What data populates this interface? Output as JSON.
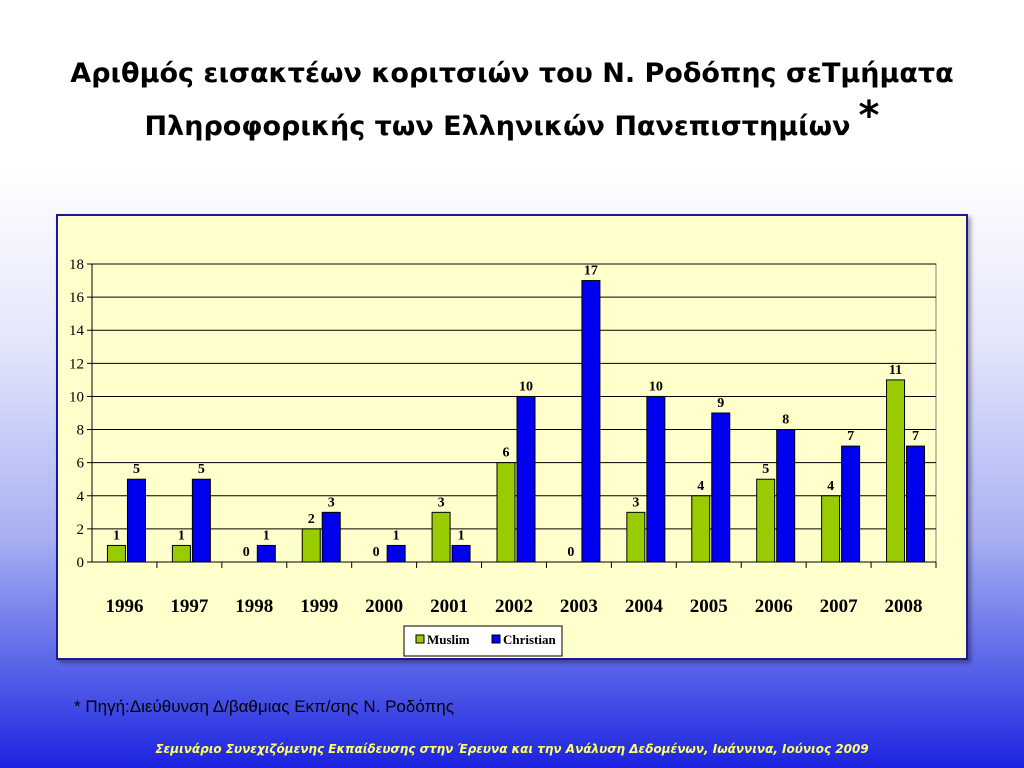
{
  "slide": {
    "title_line1": "Αριθμός εισακτέων κοριτσιών του Ν. Ροδόπης σεΤμήματα",
    "title_line2": "Πληροφορικής των Ελληνικών Πανεπιστημίων",
    "title_mark": "*",
    "source_note": "* Πηγή:Διεύθυνση Δ/βαθμιας Εκπ/σης Ν. Ροδόπης",
    "footer": "Σεμινάριο Συνεχιζόμενης Εκπαίδευσης στην Έρευνα και την Ανάλυση Δεδομένων, Ιωάννινα, Ιούνιος 2009"
  },
  "chart_data": {
    "type": "bar",
    "categories": [
      "1996",
      "1997",
      "1998",
      "1999",
      "2000",
      "2001",
      "2002",
      "2003",
      "2004",
      "2005",
      "2006",
      "2007",
      "2008"
    ],
    "series": [
      {
        "name": "Muslim",
        "color": "#99cc00",
        "values": [
          1,
          1,
          0,
          2,
          0,
          3,
          6,
          0,
          3,
          4,
          5,
          4,
          11
        ]
      },
      {
        "name": "Christian",
        "color": "#0000ee",
        "values": [
          5,
          5,
          1,
          3,
          1,
          1,
          10,
          17,
          10,
          9,
          8,
          7,
          7
        ]
      }
    ],
    "ylim": [
      0,
      18
    ],
    "yticks": [
      0,
      2,
      4,
      6,
      8,
      10,
      12,
      14,
      16,
      18
    ],
    "grid": true,
    "legend": "bottom-center",
    "data_labels": true
  }
}
